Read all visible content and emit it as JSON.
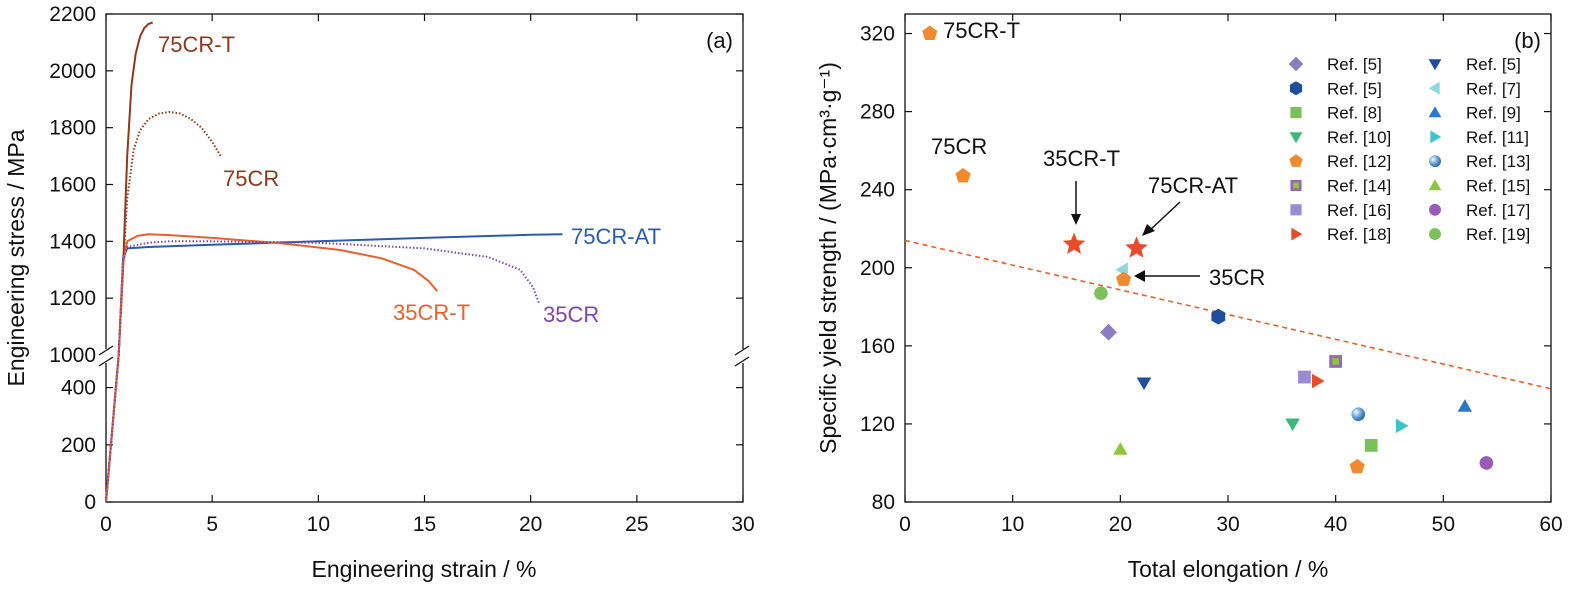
{
  "chart_data": [
    {
      "panel": "(a)",
      "type": "line",
      "xlabel": "Engineering strain / %",
      "ylabel": "Engineering stress / MPa",
      "xlim": [
        0,
        30
      ],
      "ylim_lower": [
        0,
        500
      ],
      "ylim_upper": [
        1000,
        2200
      ],
      "axis_break": true,
      "xticks": [
        0,
        5,
        10,
        15,
        20,
        25,
        30
      ],
      "yticks_lower": [
        0,
        200,
        400
      ],
      "yticks_upper": [
        1000,
        1200,
        1400,
        1600,
        1800,
        2000,
        2200
      ],
      "series": [
        {
          "name": "75CR-T",
          "color": "#8B3A1E",
          "dash": "solid",
          "x": [
            0,
            0.6,
            0.8,
            1.0,
            1.2,
            1.4,
            1.6,
            1.8,
            2.0,
            2.2
          ],
          "y": [
            0,
            1000,
            1300,
            1700,
            1950,
            2060,
            2120,
            2150,
            2165,
            2170
          ]
        },
        {
          "name": "75CR",
          "color": "#8B3A1E",
          "dash": "dotted",
          "x": [
            0,
            0.6,
            0.8,
            1.0,
            1.3,
            1.6,
            2.0,
            2.5,
            3.0,
            3.5,
            4.0,
            4.5,
            5.0,
            5.4
          ],
          "y": [
            0,
            1000,
            1300,
            1550,
            1720,
            1790,
            1830,
            1850,
            1855,
            1850,
            1830,
            1800,
            1750,
            1700
          ]
        },
        {
          "name": "75CR-AT",
          "color": "#2A5CA8",
          "dash": "solid",
          "x": [
            0,
            0.6,
            0.8,
            1.0,
            2.0,
            5.0,
            10.0,
            15.0,
            20.0,
            21.5
          ],
          "y": [
            0,
            1000,
            1340,
            1375,
            1380,
            1388,
            1400,
            1412,
            1423,
            1425
          ]
        },
        {
          "name": "35CR-T",
          "color": "#E8612C",
          "dash": "solid",
          "x": [
            0,
            0.6,
            0.8,
            1.0,
            1.5,
            2.0,
            3.0,
            5.0,
            8.0,
            11.0,
            13.0,
            14.5,
            15.2,
            15.6
          ],
          "y": [
            0,
            1000,
            1320,
            1400,
            1420,
            1425,
            1422,
            1412,
            1395,
            1370,
            1340,
            1300,
            1260,
            1225
          ]
        },
        {
          "name": "35CR",
          "color": "#7D47A8",
          "dash": "dotted",
          "x": [
            0,
            0.6,
            0.8,
            1.0,
            2.0,
            3.0,
            5.0,
            10.0,
            15.0,
            18.0,
            19.5,
            20.1,
            20.4
          ],
          "y": [
            0,
            1000,
            1330,
            1380,
            1395,
            1400,
            1400,
            1395,
            1375,
            1345,
            1300,
            1240,
            1180
          ]
        }
      ]
    },
    {
      "panel": "(b)",
      "type": "scatter",
      "xlabel": "Total elongation / %",
      "ylabel": "Specific yield strength / (MPa·cm³·g⁻¹)",
      "xlim": [
        0,
        60
      ],
      "ylim": [
        80,
        330
      ],
      "xticks": [
        0,
        10,
        20,
        30,
        40,
        50,
        60
      ],
      "yticks": [
        80,
        120,
        160,
        200,
        240,
        280,
        320
      ],
      "trendline": {
        "x": [
          0,
          60
        ],
        "y": [
          214,
          138
        ],
        "color": "#E8612C",
        "dash": "dashed"
      },
      "points": [
        {
          "label": "75CR-T",
          "marker": "pentagon",
          "color": "#F08A30",
          "x": 2.3,
          "y": 320
        },
        {
          "label": "75CR",
          "marker": "pentagon",
          "color": "#F08A30",
          "x": 5.4,
          "y": 247
        },
        {
          "label": "35CR-T",
          "marker": "star",
          "color": "#E84A2A",
          "x": 15.7,
          "y": 212
        },
        {
          "label": "75CR-AT",
          "marker": "star",
          "color": "#E84A2A",
          "x": 21.5,
          "y": 210
        },
        {
          "label": "35CR",
          "marker": "pentagon",
          "color": "#F08A30",
          "x": 20.3,
          "y": 194
        }
      ],
      "reference_points": [
        {
          "ref": "Ref. [5]",
          "marker": "diamond",
          "color": "#8E7CC3",
          "x": 18.9,
          "y": 167
        },
        {
          "ref": "Ref. [5]",
          "marker": "hexagon",
          "color": "#1F4E9C",
          "x": 29.1,
          "y": 175
        },
        {
          "ref": "Ref. [5]",
          "marker": "triangle-down",
          "color": "#1F4E9C",
          "x": 22.2,
          "y": 141
        },
        {
          "ref": "Ref. [7]",
          "marker": "triangle-left",
          "color": "#8ED8E0",
          "x": 20.2,
          "y": 199
        },
        {
          "ref": "Ref. [8]",
          "marker": "square",
          "color": "#7CC05A",
          "x": 43.3,
          "y": 109
        },
        {
          "ref": "Ref. [9]",
          "marker": "triangle-up",
          "color": "#2A78C8",
          "x": 52,
          "y": 129
        },
        {
          "ref": "Ref. [10]",
          "marker": "triangle-down",
          "color": "#3DB87A",
          "x": 36,
          "y": 120
        },
        {
          "ref": "Ref. [11]",
          "marker": "triangle-right",
          "color": "#3CC4C8",
          "x": 46.1,
          "y": 119
        },
        {
          "ref": "Ref. [12]",
          "marker": "pentagon",
          "color": "#F08A30",
          "x": 42,
          "y": 98
        },
        {
          "ref": "Ref. [13]",
          "marker": "sphere",
          "color": "#4A90C8",
          "x": 42.1,
          "y": 125
        },
        {
          "ref": "Ref. [14]",
          "marker": "square-inset",
          "color": "#9A6AB0",
          "x": 40,
          "y": 152
        },
        {
          "ref": "Ref. [15]",
          "marker": "triangle-up",
          "color": "#8CC83C",
          "x": 20,
          "y": 107
        },
        {
          "ref": "Ref. [16]",
          "marker": "square",
          "color": "#9A8CD0",
          "x": 37.1,
          "y": 144
        },
        {
          "ref": "Ref. [17]",
          "marker": "circle",
          "color": "#9A5AB8",
          "x": 54,
          "y": 100
        },
        {
          "ref": "Ref. [18]",
          "marker": "triangle-right",
          "color": "#E84A2A",
          "x": 38.3,
          "y": 142
        },
        {
          "ref": "Ref. [19]",
          "marker": "circle",
          "color": "#7CC05A",
          "x": 18.2,
          "y": 187
        }
      ],
      "legend": {
        "placement": "top-right",
        "columns": [
          [
            {
              "label": "Ref. [5]",
              "marker": "diamond",
              "color": "#8E7CC3"
            },
            {
              "label": "Ref. [5]",
              "marker": "hexagon",
              "color": "#1F4E9C"
            },
            {
              "label": "Ref. [8]",
              "marker": "square",
              "color": "#7CC05A"
            },
            {
              "label": "Ref. [10]",
              "marker": "triangle-down",
              "color": "#3DB87A"
            },
            {
              "label": "Ref. [12]",
              "marker": "pentagon",
              "color": "#F08A30"
            },
            {
              "label": "Ref. [14]",
              "marker": "square-inset",
              "color": "#9A6AB0"
            },
            {
              "label": "Ref. [16]",
              "marker": "square",
              "color": "#9A8CD0"
            },
            {
              "label": "Ref. [18]",
              "marker": "triangle-right",
              "color": "#E84A2A"
            }
          ],
          [
            {
              "label": "Ref. [5]",
              "marker": "triangle-down",
              "color": "#1F4E9C"
            },
            {
              "label": "Ref. [7]",
              "marker": "triangle-left",
              "color": "#8ED8E0"
            },
            {
              "label": "Ref. [9]",
              "marker": "triangle-up",
              "color": "#2A78C8"
            },
            {
              "label": "Ref. [11]",
              "marker": "triangle-right",
              "color": "#3CC4C8"
            },
            {
              "label": "Ref. [13]",
              "marker": "sphere",
              "color": "#4A90C8"
            },
            {
              "label": "Ref. [15]",
              "marker": "triangle-up",
              "color": "#8CC83C"
            },
            {
              "label": "Ref. [17]",
              "marker": "circle",
              "color": "#9A5AB8"
            },
            {
              "label": "Ref. [19]",
              "marker": "circle",
              "color": "#7CC05A"
            }
          ]
        ]
      }
    }
  ]
}
